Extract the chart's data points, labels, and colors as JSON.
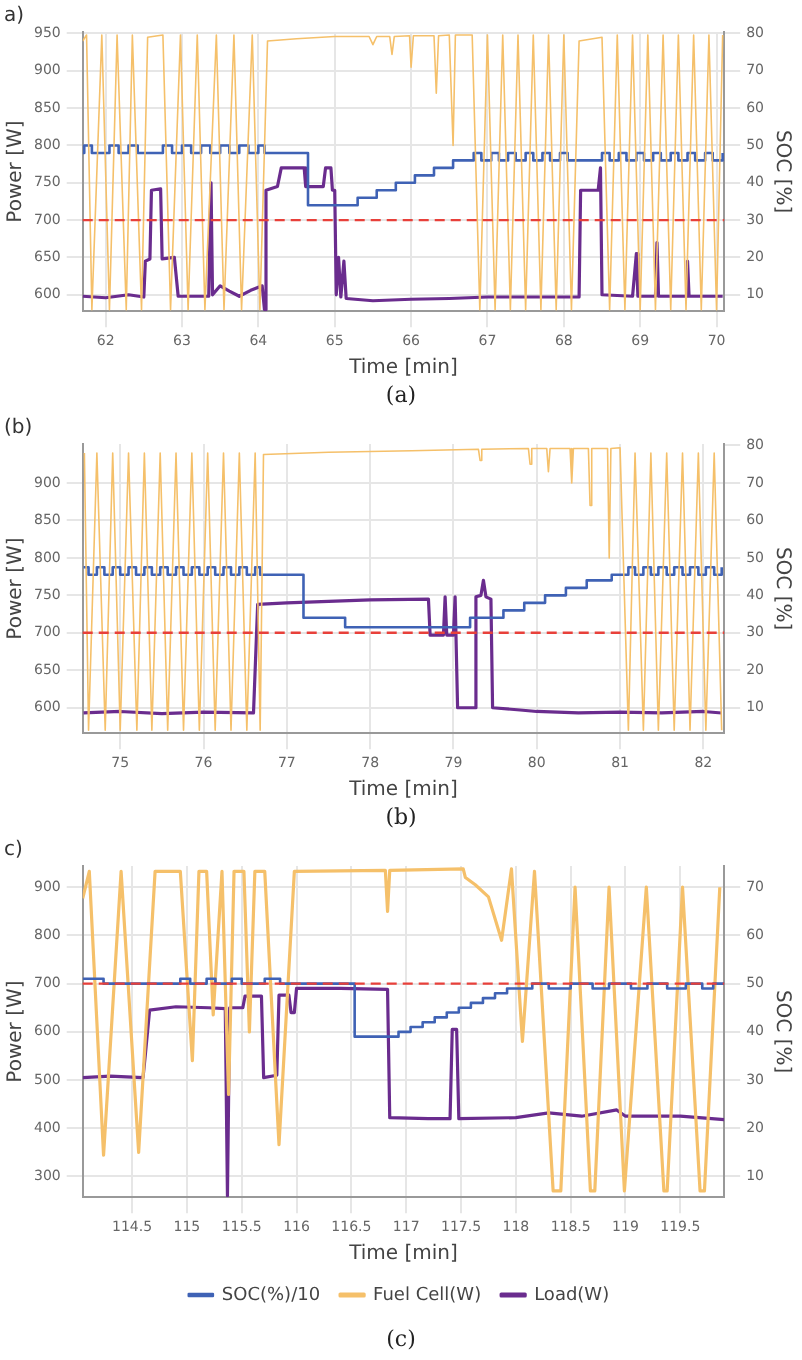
{
  "chart_data": [
    {
      "type": "line",
      "title": "a)",
      "xlabel": "Time [min]",
      "ylabel": "Power [W]",
      "y2label": "SOC [%]",
      "annotations": [
        "(a)"
      ],
      "grid": true,
      "legend": false,
      "xlim": [
        61.7,
        70.1
      ],
      "xticks": [
        62,
        63,
        64,
        65,
        66,
        67,
        68,
        69,
        70
      ],
      "ylim": [
        578,
        952
      ],
      "yticks": [
        600,
        650,
        700,
        750,
        800,
        850,
        900,
        950
      ],
      "y2lim": [
        5.6,
        80.4
      ],
      "y2ticks": [
        10,
        20,
        30,
        40,
        50,
        60,
        70,
        80
      ],
      "ref_lines": [
        {
          "axis": "y",
          "value": 700,
          "color": "#e8403a",
          "line_style": "dashed"
        }
      ],
      "series": [
        {
          "color": "#f5c06a",
          "x": [
            61.7,
            61.75,
            61.82,
            61.95,
            62.05,
            62.15,
            62.27,
            62.35,
            62.47,
            62.55,
            62.75,
            62.85,
            62.98,
            63.08,
            63.2,
            63.3,
            63.45,
            63.55,
            63.68,
            63.78,
            63.92,
            64.02,
            64.12,
            64.5,
            65.0,
            65.45,
            65.5,
            65.55,
            65.72,
            65.75,
            65.78,
            65.98,
            66.0,
            66.03,
            66.3,
            66.33,
            66.36,
            66.5,
            66.55,
            66.58,
            66.8,
            66.9,
            67.0,
            67.1,
            67.2,
            67.3,
            67.4,
            67.5,
            67.6,
            67.7,
            67.8,
            67.9,
            68.0,
            68.1,
            68.2,
            68.5,
            68.6,
            68.7,
            68.8,
            68.9,
            69.0,
            69.1,
            69.2,
            69.3,
            69.4,
            69.5,
            69.6,
            69.7,
            69.8,
            69.9,
            70.0,
            70.08
          ],
          "values": [
            940,
            948,
            580,
            948,
            580,
            948,
            580,
            948,
            580,
            945,
            948,
            580,
            948,
            580,
            948,
            580,
            948,
            580,
            948,
            580,
            948,
            580,
            940,
            943,
            946,
            946,
            935,
            946,
            946,
            922,
            946,
            947,
            905,
            947,
            947,
            870,
            947,
            948,
            800,
            948,
            948,
            580,
            948,
            580,
            948,
            580,
            948,
            580,
            948,
            580,
            948,
            580,
            948,
            580,
            940,
            945,
            580,
            948,
            580,
            948,
            580,
            948,
            580,
            948,
            580,
            948,
            580,
            948,
            580,
            948,
            580,
            948
          ]
        },
        {
          "type": "step",
          "axis": "y2",
          "color": "#3f62b5",
          "x": [
            61.7,
            61.72,
            61.82,
            62.05,
            62.17,
            62.3,
            62.42,
            62.75,
            62.87,
            63.0,
            63.12,
            63.25,
            63.37,
            63.5,
            63.62,
            63.75,
            63.87,
            64.0,
            64.08,
            64.65,
            65.3,
            65.55,
            65.8,
            66.05,
            66.3,
            66.55,
            66.82,
            66.92,
            67.05,
            67.15,
            67.27,
            67.37,
            67.5,
            67.6,
            67.72,
            67.82,
            67.95,
            68.05,
            68.5,
            68.6,
            68.72,
            68.82,
            68.95,
            69.05,
            69.17,
            69.27,
            69.4,
            69.5,
            69.62,
            69.72,
            69.85,
            69.95,
            70.08
          ],
          "values": [
            48,
            50,
            48,
            50,
            48,
            50,
            48,
            50,
            48,
            50,
            48,
            50,
            48,
            50,
            48,
            50,
            48,
            50,
            48,
            34,
            36,
            38,
            40,
            42,
            44,
            46,
            48,
            46,
            48,
            46,
            48,
            46,
            48,
            46,
            48,
            46,
            48,
            46,
            48,
            46,
            48,
            46,
            48,
            46,
            48,
            46,
            48,
            46,
            48,
            46,
            48,
            46,
            48
          ]
        },
        {
          "color": "#6a2c8e",
          "x": [
            61.7,
            62.0,
            62.3,
            62.5,
            62.52,
            62.58,
            62.6,
            62.72,
            62.74,
            62.9,
            62.95,
            63.35,
            63.38,
            63.4,
            63.5,
            63.62,
            63.75,
            63.9,
            64.05,
            64.08,
            64.1,
            64.25,
            64.3,
            64.6,
            64.62,
            64.85,
            64.88,
            64.95,
            64.97,
            65.0,
            65.02,
            65.05,
            65.08,
            65.12,
            65.15,
            65.5,
            66.0,
            66.5,
            67.0,
            67.5,
            68.0,
            68.2,
            68.22,
            68.45,
            68.48,
            68.5,
            68.9,
            68.95,
            68.97,
            69.2,
            69.22,
            69.24,
            69.6,
            69.62,
            69.64,
            70.08
          ],
          "values": [
            598,
            596,
            600,
            597,
            645,
            648,
            740,
            742,
            648,
            650,
            598,
            598,
            750,
            600,
            612,
            605,
            598,
            606,
            612,
            580,
            740,
            745,
            770,
            770,
            745,
            745,
            770,
            770,
            740,
            740,
            600,
            650,
            597,
            645,
            595,
            592,
            594,
            595,
            597,
            597,
            597,
            597,
            740,
            740,
            770,
            600,
            598,
            655,
            598,
            598,
            670,
            598,
            598,
            645,
            598,
            598
          ]
        }
      ]
    },
    {
      "type": "line",
      "title": "(b)",
      "xlabel": "Time [min]",
      "ylabel": "Power [W]",
      "y2label": "SOC [%]",
      "annotations": [
        "(b)"
      ],
      "grid": true,
      "legend": false,
      "xlim": [
        74.55,
        82.25
      ],
      "xticks": [
        75,
        76,
        77,
        78,
        79,
        80,
        81,
        82
      ],
      "ylim": [
        566,
        952
      ],
      "yticks": [
        600,
        650,
        700,
        750,
        800,
        850,
        900
      ],
      "y2lim": [
        3.2,
        80.4
      ],
      "y2ticks": [
        10,
        20,
        30,
        40,
        50,
        60,
        70,
        80
      ],
      "ref_lines": [
        {
          "axis": "y",
          "value": 700,
          "color": "#e8403a",
          "line_style": "dashed"
        }
      ],
      "series": [
        {
          "color": "#f5c06a",
          "x": [
            74.57,
            74.62,
            74.72,
            74.82,
            74.91,
            75.0,
            75.1,
            75.2,
            75.29,
            75.38,
            75.48,
            75.57,
            75.67,
            75.76,
            75.86,
            75.95,
            76.05,
            76.14,
            76.24,
            76.33,
            76.43,
            76.52,
            76.62,
            76.68,
            76.72,
            77.5,
            78.5,
            79.3,
            79.32,
            79.34,
            79.9,
            79.92,
            79.94,
            80.12,
            80.14,
            80.16,
            80.4,
            80.42,
            80.44,
            80.62,
            80.64,
            80.66,
            80.85,
            80.87,
            80.89,
            81.0,
            81.1,
            81.18,
            81.28,
            81.37,
            81.46,
            81.56,
            81.65,
            81.75,
            81.84,
            81.94,
            82.03,
            82.13,
            82.22
          ],
          "values": [
            940,
            570,
            940,
            570,
            940,
            570,
            940,
            570,
            940,
            570,
            940,
            570,
            940,
            570,
            940,
            570,
            940,
            570,
            940,
            570,
            940,
            570,
            940,
            570,
            938,
            941,
            943,
            945,
            930,
            945,
            946,
            925,
            946,
            946,
            915,
            946,
            946,
            900,
            946,
            946,
            870,
            946,
            946,
            800,
            946,
            947,
            570,
            940,
            570,
            940,
            570,
            940,
            570,
            940,
            570,
            940,
            570,
            940,
            570
          ]
        },
        {
          "type": "step",
          "axis": "y2",
          "color": "#3f62b5",
          "x": [
            74.56,
            74.62,
            74.72,
            74.81,
            74.91,
            75.0,
            75.1,
            75.19,
            75.29,
            75.38,
            75.48,
            75.57,
            75.67,
            75.76,
            75.86,
            75.95,
            76.05,
            76.14,
            76.24,
            76.33,
            76.43,
            76.52,
            76.62,
            76.68,
            77.2,
            77.7,
            79.2,
            79.6,
            79.85,
            80.1,
            80.35,
            80.6,
            80.9,
            81.1,
            81.18,
            81.28,
            81.37,
            81.46,
            81.56,
            81.65,
            81.75,
            81.84,
            81.94,
            82.03,
            82.13,
            82.22
          ],
          "values": [
            47.5,
            45.5,
            47.5,
            45.5,
            47.5,
            45.5,
            47.5,
            45.5,
            47.5,
            45.5,
            47.5,
            45.5,
            47.5,
            45.5,
            47.5,
            45.5,
            47.5,
            45.5,
            47.5,
            45.5,
            47.5,
            45.5,
            47.5,
            45.5,
            34,
            31.5,
            34,
            36,
            38,
            40,
            42,
            44,
            45.5,
            47.5,
            45.5,
            47.5,
            45.5,
            47.5,
            45.5,
            47.5,
            45.5,
            47.5,
            45.5,
            47.5,
            45.5,
            47.5
          ]
        },
        {
          "color": "#6a2c8e",
          "x": [
            74.56,
            75.0,
            75.5,
            76.0,
            76.6,
            76.65,
            77.0,
            77.5,
            78.0,
            78.7,
            78.72,
            78.88,
            78.9,
            78.92,
            79.0,
            79.02,
            79.05,
            79.25,
            79.27,
            79.33,
            79.36,
            79.39,
            79.45,
            79.47,
            79.8,
            80.0,
            80.5,
            81.0,
            81.5,
            82.0,
            82.22
          ],
          "values": [
            593,
            595,
            592,
            594,
            593,
            738,
            740,
            742,
            744,
            745,
            697,
            697,
            748,
            697,
            697,
            748,
            600,
            600,
            748,
            750,
            770,
            748,
            745,
            600,
            597,
            595,
            593,
            594,
            593,
            595,
            593
          ]
        }
      ]
    },
    {
      "type": "line",
      "title": "c)",
      "xlabel": "Time [min]",
      "ylabel": "Power [W]",
      "y2label": "SOC [%]",
      "annotations": [
        "(c)"
      ],
      "grid": true,
      "legend": "bottom",
      "xlim": [
        114.05,
        119.9
      ],
      "xticks": [
        114.5,
        115,
        115.5,
        116,
        116.5,
        117,
        117.5,
        118,
        118.5,
        119,
        119.5
      ],
      "ylim": [
        257,
        944
      ],
      "yticks": [
        300,
        400,
        500,
        600,
        700,
        800,
        900
      ],
      "y2lim": [
        5.7,
        74.4
      ],
      "y2ticks": [
        10,
        20,
        30,
        40,
        50,
        60,
        70
      ],
      "ref_lines": [
        {
          "axis": "y",
          "value": 700,
          "color": "#e8403a",
          "line_style": "dashed"
        }
      ],
      "series": [
        {
          "name": "SOC(%)/10",
          "type": "step",
          "axis": "y2",
          "color": "#3f62b5",
          "x": [
            114.05,
            114.24,
            114.94,
            115.03,
            115.18,
            115.26,
            115.41,
            115.5,
            115.71,
            115.85,
            116.53,
            116.93,
            117.04,
            117.15,
            117.26,
            117.37,
            117.48,
            117.59,
            117.7,
            117.81,
            117.92,
            118.15,
            118.3,
            118.5,
            118.7,
            118.85,
            119.05,
            119.2,
            119.38,
            119.55,
            119.7,
            119.8,
            119.9
          ],
          "values": [
            51,
            50,
            51,
            50,
            51,
            50,
            51,
            50,
            51,
            50,
            39,
            40,
            41,
            42,
            43,
            44,
            45,
            46,
            47,
            48,
            49,
            50,
            49,
            50,
            49,
            50,
            49,
            50,
            49,
            50,
            49,
            50,
            50
          ]
        },
        {
          "name": "Fuel Cell(W)",
          "color": "#f5c06a",
          "x": [
            114.05,
            114.11,
            114.24,
            114.4,
            114.56,
            114.71,
            114.94,
            115.05,
            115.11,
            115.18,
            115.24,
            115.32,
            115.38,
            115.43,
            115.52,
            115.57,
            115.62,
            115.71,
            115.84,
            115.98,
            116.81,
            116.83,
            116.85,
            117.52,
            117.54,
            117.63,
            117.75,
            117.87,
            117.96,
            118.06,
            118.17,
            118.34,
            118.41,
            118.54,
            118.68,
            118.72,
            118.85,
            118.99,
            119.19,
            119.35,
            119.38,
            119.52,
            119.68,
            119.72,
            119.86
          ],
          "values": [
            877,
            933,
            344,
            933,
            350,
            933,
            933,
            540,
            933,
            933,
            635,
            933,
            470,
            933,
            933,
            600,
            933,
            933,
            366,
            933,
            935,
            850,
            935,
            938,
            920,
            905,
            880,
            790,
            938,
            580,
            933,
            270,
            270,
            900,
            270,
            270,
            900,
            270,
            900,
            270,
            270,
            900,
            270,
            270,
            900
          ]
        },
        {
          "name": "Load(W)",
          "color": "#6a2c8e",
          "x": [
            114.05,
            114.3,
            114.6,
            114.62,
            114.66,
            114.9,
            115.2,
            115.35,
            115.37,
            115.39,
            115.51,
            115.53,
            115.68,
            115.7,
            115.82,
            115.84,
            115.93,
            115.95,
            115.98,
            116.0,
            116.4,
            116.83,
            116.85,
            117.2,
            117.4,
            117.42,
            117.46,
            117.48,
            118.0,
            118.3,
            118.6,
            118.92,
            119.0,
            119.5,
            119.9
          ],
          "values": [
            505,
            508,
            505,
            550,
            645,
            652,
            650,
            648,
            260,
            650,
            650,
            674,
            674,
            505,
            510,
            676,
            676,
            640,
            640,
            690,
            690,
            688,
            422,
            420,
            420,
            605,
            605,
            420,
            422,
            432,
            425,
            438,
            425,
            425,
            418
          ]
        }
      ]
    }
  ]
}
